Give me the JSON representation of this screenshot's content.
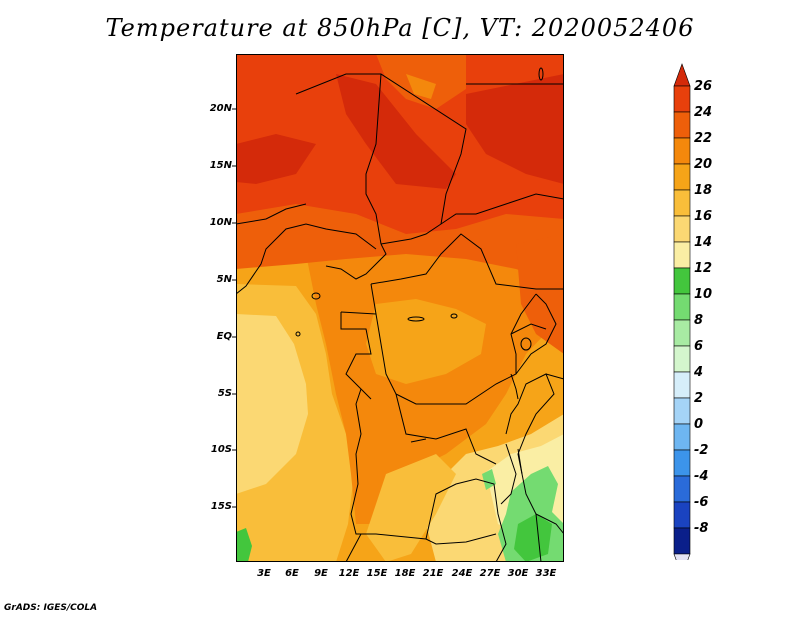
{
  "title": "Temperature at 850hPa [C], VT: 2020052406",
  "credit": "GrADS: IGES/COLA",
  "map": {
    "lat_labels": [
      "20N",
      "15N",
      "10N",
      "5N",
      "EQ",
      "5S",
      "10S",
      "15S"
    ],
    "lon_labels": [
      "3E",
      "6E",
      "9E",
      "12E",
      "15E",
      "18E",
      "21E",
      "24E",
      "27E",
      "30E",
      "33E"
    ]
  },
  "colorbar": {
    "labels": [
      "26",
      "24",
      "22",
      "20",
      "18",
      "16",
      "14",
      "12",
      "10",
      "8",
      "6",
      "4",
      "2",
      "0",
      "-2",
      "-4",
      "-6",
      "-8"
    ],
    "colors": [
      "#d42a0a",
      "#e8400c",
      "#ee5f0a",
      "#f4880c",
      "#f6a418",
      "#f9be3a",
      "#fbd873",
      "#faeea4",
      "#43c63d",
      "#74db71",
      "#a8eba3",
      "#d4f6cd",
      "#d6eefa",
      "#a5d4f7",
      "#6eb6f1",
      "#3c94ea",
      "#2a6bd9",
      "#1a43c0",
      "#0a1f8a",
      "#e3e3f4"
    ]
  }
}
